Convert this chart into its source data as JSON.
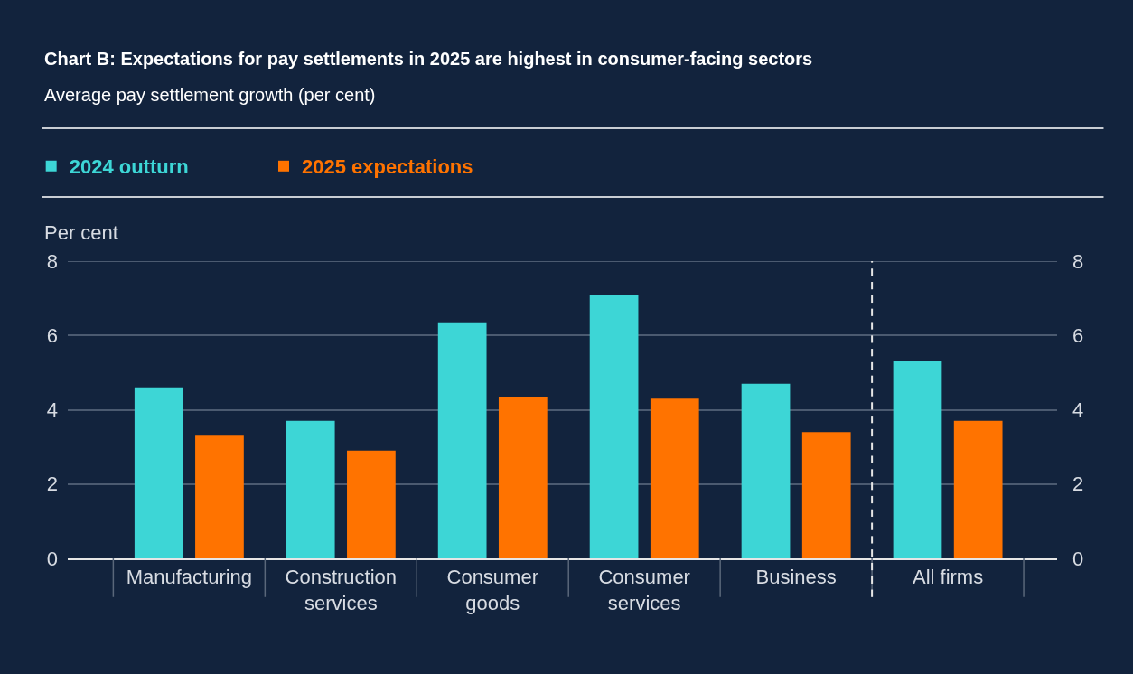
{
  "chart_data": {
    "type": "bar",
    "title": "Chart B: Expectations for pay settlements in 2025 are highest in consumer-facing sectors",
    "subtitle": "Average pay settlement growth (per cent)",
    "ylabel": "Per cent",
    "categories": [
      "Manufacturing",
      "Construction services",
      "Consumer goods",
      "Consumer services",
      "Business",
      "All firms"
    ],
    "series": [
      {
        "name": "2024 outturn",
        "color": "#3dd6d6",
        "values": [
          4.6,
          3.7,
          6.35,
          7.1,
          4.7,
          5.3
        ]
      },
      {
        "name": "2025 expectations",
        "color": "#ff7300",
        "values": [
          3.3,
          2.9,
          4.35,
          4.3,
          3.4,
          3.7
        ]
      }
    ],
    "ylim": [
      0,
      8
    ],
    "yticks": [
      0,
      2,
      4,
      6,
      8
    ],
    "y2lim": [
      0,
      8
    ],
    "y2ticks": [
      0,
      2,
      4,
      6,
      8
    ],
    "grid": "y",
    "legend": "top left"
  }
}
